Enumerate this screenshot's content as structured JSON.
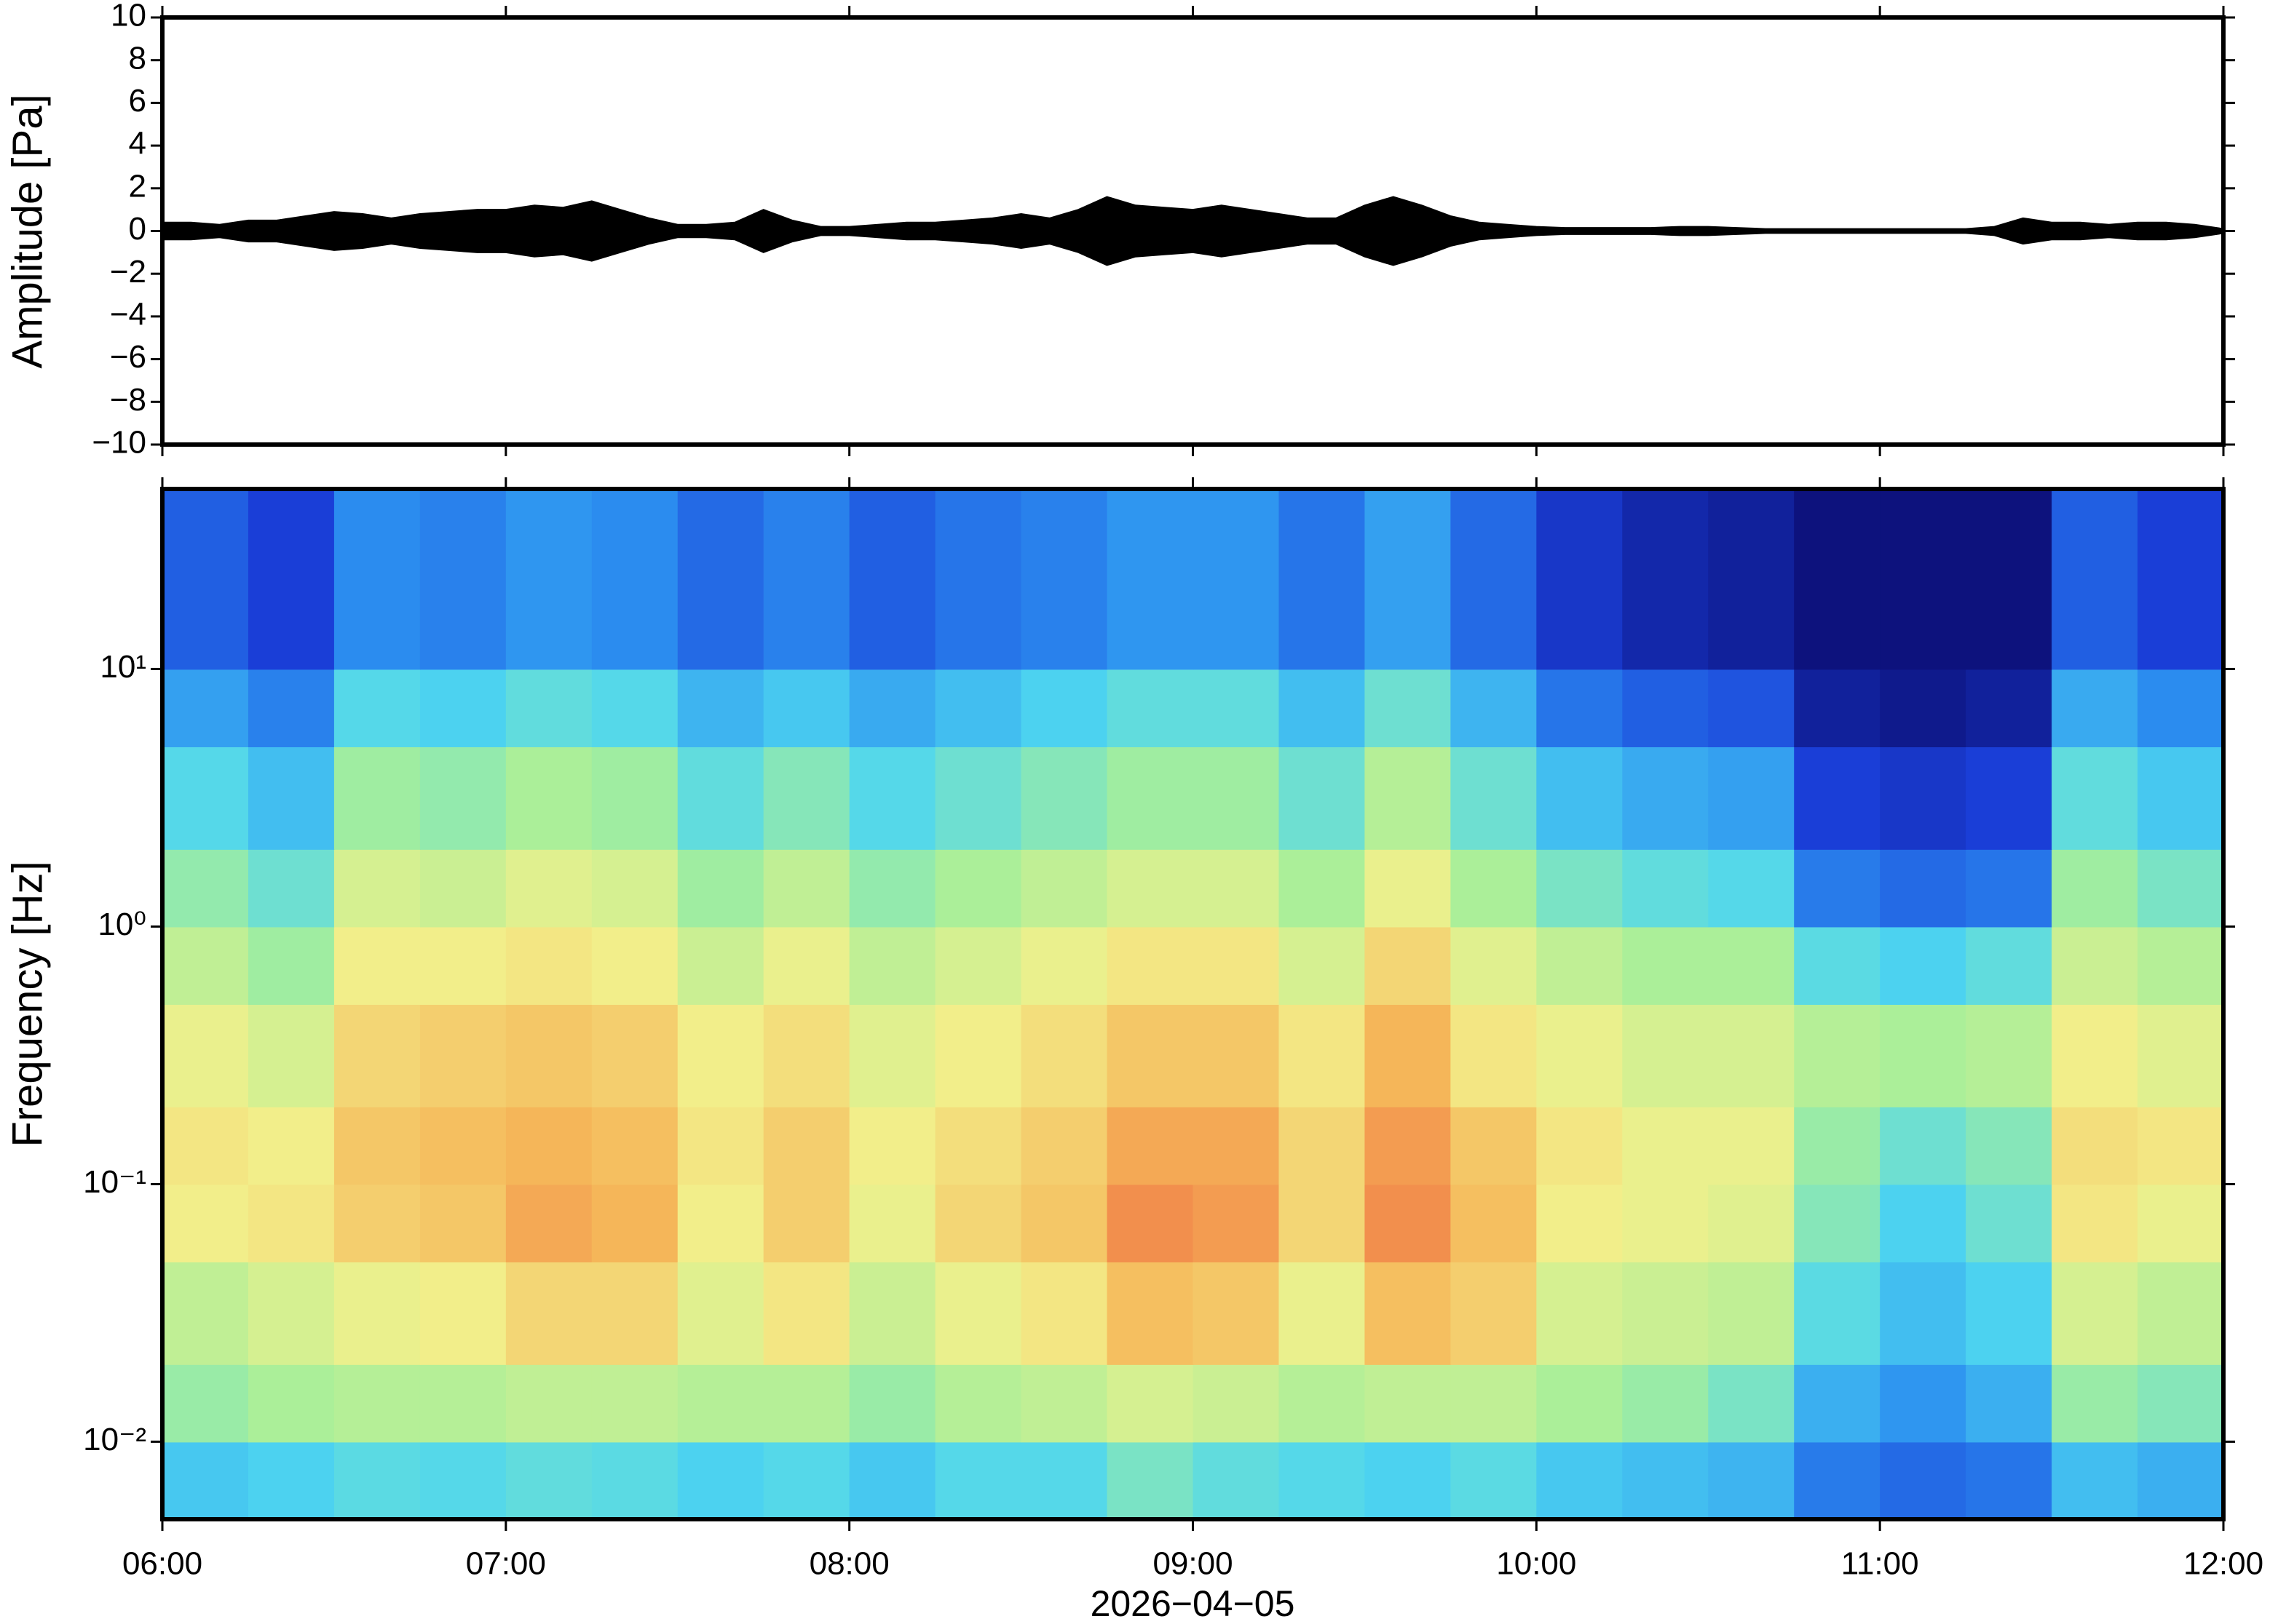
{
  "chart_data": [
    {
      "type": "waveform",
      "ylabel": "Amplitude [Pa]",
      "color": "#000000",
      "xlim": [
        "06:00",
        "12:00"
      ],
      "ylim": [
        -10,
        10
      ],
      "yticks": [
        {
          "value": -10,
          "label": "−10"
        },
        {
          "value": -8,
          "label": "−8"
        },
        {
          "value": -6,
          "label": "−6"
        },
        {
          "value": -4,
          "label": "−4"
        },
        {
          "value": -2,
          "label": "−2"
        },
        0,
        2,
        4,
        6,
        8,
        10
      ],
      "x": [
        "06:00",
        "06:05",
        "06:10",
        "06:15",
        "06:20",
        "06:25",
        "06:30",
        "06:35",
        "06:40",
        "06:45",
        "06:50",
        "06:55",
        "07:00",
        "07:05",
        "07:10",
        "07:15",
        "07:20",
        "07:25",
        "07:30",
        "07:35",
        "07:40",
        "07:45",
        "07:50",
        "07:55",
        "08:00",
        "08:05",
        "08:10",
        "08:15",
        "08:20",
        "08:25",
        "08:30",
        "08:35",
        "08:40",
        "08:45",
        "08:50",
        "08:55",
        "09:00",
        "09:05",
        "09:10",
        "09:15",
        "09:20",
        "09:25",
        "09:30",
        "09:35",
        "09:40",
        "09:45",
        "09:50",
        "09:55",
        "10:00",
        "10:05",
        "10:10",
        "10:15",
        "10:20",
        "10:25",
        "10:30",
        "10:35",
        "10:40",
        "10:45",
        "10:50",
        "10:55",
        "11:00",
        "11:05",
        "11:10",
        "11:15",
        "11:20",
        "11:25",
        "11:30",
        "11:35",
        "11:40",
        "11:45",
        "11:50",
        "11:55",
        "12:00"
      ],
      "values": [
        0.4,
        0.4,
        0.3,
        0.5,
        0.5,
        0.7,
        0.9,
        0.8,
        0.6,
        0.8,
        0.9,
        1.0,
        1.0,
        1.2,
        1.1,
        1.4,
        1.0,
        0.6,
        0.3,
        0.3,
        0.4,
        1.0,
        0.5,
        0.2,
        0.2,
        0.3,
        0.4,
        0.4,
        0.5,
        0.6,
        0.8,
        0.6,
        1.0,
        1.6,
        1.2,
        1.1,
        1.0,
        1.2,
        1.0,
        0.8,
        0.6,
        0.6,
        1.2,
        1.6,
        1.2,
        0.7,
        0.4,
        0.3,
        0.2,
        0.15,
        0.15,
        0.15,
        0.15,
        0.2,
        0.2,
        0.15,
        0.1,
        0.1,
        0.1,
        0.1,
        0.1,
        0.1,
        0.1,
        0.1,
        0.2,
        0.6,
        0.4,
        0.4,
        0.3,
        0.4,
        0.4,
        0.3,
        0.1
      ]
    },
    {
      "type": "heatmap",
      "ylabel": "Frequency [Hz]",
      "xlabel": "2026−04−05",
      "log_y": true,
      "xlim": [
        "06:00",
        "12:00"
      ],
      "ylim": [
        0.005,
        50
      ],
      "xticks": [
        "06:00",
        "07:00",
        "08:00",
        "09:00",
        "10:00",
        "11:00",
        "12:00"
      ],
      "yticks": [
        {
          "value": 0.01,
          "label": "10⁻²"
        },
        {
          "value": 0.1,
          "label": "10⁻¹"
        },
        {
          "value": 1,
          "label": "10⁰"
        },
        {
          "value": 10,
          "label": "10¹"
        }
      ],
      "colormap": [
        "#0b0b6e",
        "#1a3fd9",
        "#2c8ff0",
        "#4ed6f0",
        "#a6ef9a",
        "#f2f08c",
        "#f5b85a",
        "#ee5a3c"
      ],
      "clim": [
        0,
        100
      ],
      "xbins": [
        "06:00",
        "06:15",
        "06:30",
        "06:45",
        "07:00",
        "07:15",
        "07:30",
        "07:45",
        "08:00",
        "08:15",
        "08:30",
        "08:45",
        "09:00",
        "09:15",
        "09:30",
        "09:45",
        "10:00",
        "10:15",
        "10:30",
        "10:45",
        "11:00",
        "11:15",
        "11:30",
        "11:45",
        "12:00"
      ],
      "ybins": [
        0.005,
        0.01,
        0.02,
        0.05,
        0.1,
        0.2,
        0.5,
        1,
        2,
        5,
        10,
        50
      ],
      "values": [
        [
          40,
          42,
          45,
          44,
          46,
          45,
          42,
          44,
          40,
          44,
          44,
          50,
          46,
          44,
          42,
          45,
          40,
          38,
          36,
          25,
          22,
          24,
          38,
          35
        ],
        [
          55,
          58,
          60,
          60,
          62,
          62,
          60,
          60,
          55,
          60,
          62,
          66,
          64,
          60,
          62,
          62,
          58,
          55,
          50,
          35,
          30,
          35,
          55,
          52
        ],
        [
          62,
          66,
          70,
          72,
          78,
          78,
          68,
          74,
          64,
          70,
          74,
          84,
          82,
          70,
          84,
          80,
          66,
          64,
          62,
          45,
          38,
          42,
          66,
          62
        ],
        [
          72,
          74,
          80,
          82,
          88,
          86,
          72,
          80,
          70,
          78,
          82,
          92,
          90,
          78,
          92,
          84,
          72,
          70,
          68,
          52,
          42,
          48,
          74,
          70
        ],
        [
          74,
          72,
          82,
          84,
          86,
          84,
          74,
          80,
          72,
          76,
          80,
          88,
          88,
          78,
          90,
          82,
          74,
          70,
          70,
          55,
          48,
          52,
          76,
          74
        ],
        [
          70,
          66,
          78,
          80,
          82,
          80,
          72,
          76,
          68,
          72,
          76,
          82,
          82,
          74,
          86,
          74,
          70,
          66,
          66,
          60,
          58,
          60,
          72,
          68
        ],
        [
          62,
          56,
          72,
          72,
          74,
          72,
          64,
          70,
          62,
          66,
          70,
          74,
          74,
          66,
          78,
          68,
          62,
          58,
          58,
          45,
          42,
          46,
          64,
          60
        ],
        [
          54,
          48,
          66,
          64,
          68,
          66,
          56,
          62,
          54,
          58,
          62,
          66,
          66,
          58,
          70,
          58,
          50,
          46,
          44,
          25,
          22,
          24,
          56,
          50
        ],
        [
          44,
          38,
          56,
          54,
          58,
          56,
          46,
          52,
          44,
          48,
          52,
          56,
          56,
          48,
          60,
          48,
          38,
          34,
          32,
          14,
          12,
          14,
          46,
          40
        ],
        [
          32,
          26,
          44,
          42,
          46,
          44,
          36,
          40,
          34,
          38,
          42,
          46,
          46,
          38,
          48,
          36,
          24,
          20,
          18,
          6,
          4,
          6,
          34,
          28
        ],
        [
          20,
          14,
          28,
          26,
          30,
          28,
          22,
          26,
          20,
          24,
          26,
          30,
          30,
          24,
          32,
          22,
          12,
          8,
          6,
          2,
          2,
          2,
          20,
          14
        ]
      ]
    }
  ]
}
